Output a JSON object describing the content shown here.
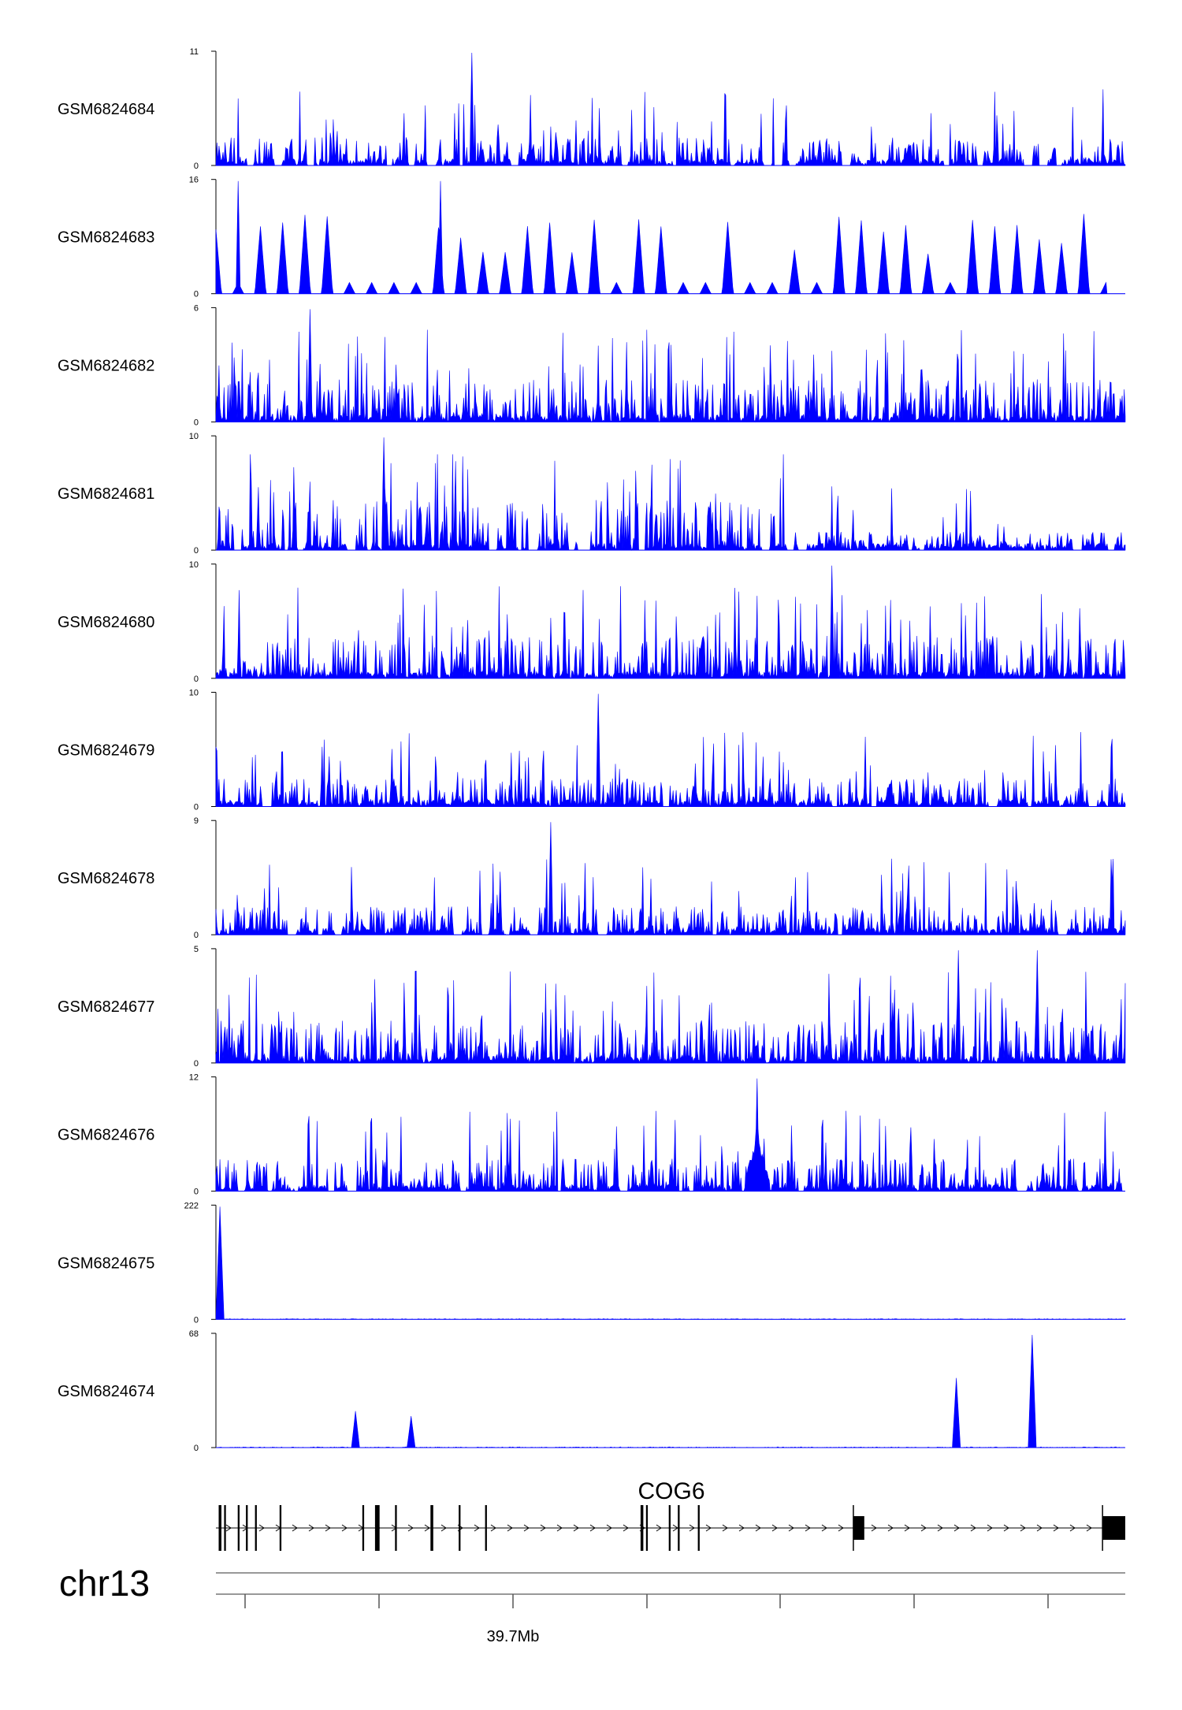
{
  "chart_data": {
    "type": "area",
    "fill_color": "#0000ff",
    "tracks": [
      {
        "name": "GSM6824684",
        "ymax_label": "11",
        "ymin_label": "0",
        "ymax": 11,
        "texture": "spiky_sparse",
        "peaks": [
          {
            "x": 0.281,
            "y": 11
          }
        ]
      },
      {
        "name": "GSM6824683",
        "ymax_label": "16",
        "ymin_label": "0",
        "ymax": 16,
        "texture": "triangular",
        "peaks": [
          {
            "x": 0.025,
            "y": 16
          },
          {
            "x": 0.247,
            "y": 16
          }
        ]
      },
      {
        "name": "GSM6824682",
        "ymax_label": "6",
        "ymin_label": "0",
        "ymax": 6,
        "texture": "dense",
        "peaks": [
          {
            "x": 0.104,
            "y": 6
          }
        ]
      },
      {
        "name": "GSM6824681",
        "ymax_label": "10",
        "ymin_label": "0",
        "ymax": 10,
        "texture": "decaying",
        "peaks": [
          {
            "x": 0.185,
            "y": 10
          }
        ]
      },
      {
        "name": "GSM6824680",
        "ymax_label": "10",
        "ymin_label": "0",
        "ymax": 10,
        "texture": "dense",
        "peaks": [
          {
            "x": 0.677,
            "y": 10
          }
        ]
      },
      {
        "name": "GSM6824679",
        "ymax_label": "10",
        "ymin_label": "0",
        "ymax": 10,
        "texture": "spiky_sparse",
        "peaks": [
          {
            "x": 0.421,
            "y": 10
          }
        ]
      },
      {
        "name": "GSM6824678",
        "ymax_label": "9",
        "ymin_label": "0",
        "ymax": 9,
        "texture": "spiky_sparse",
        "peaks": [
          {
            "x": 0.368,
            "y": 9
          }
        ]
      },
      {
        "name": "GSM6824677",
        "ymax_label": "5",
        "ymin_label": "0",
        "ymax": 5,
        "texture": "dense",
        "peaks": [
          {
            "x": 0.817,
            "y": 5
          },
          {
            "x": 0.903,
            "y": 5
          }
        ]
      },
      {
        "name": "GSM6824676",
        "ymax_label": "12",
        "ymin_label": "0",
        "ymax": 12,
        "texture": "wide",
        "peaks": [
          {
            "x": 0.595,
            "y": 12
          }
        ]
      },
      {
        "name": "GSM6824675",
        "ymax_label": "222",
        "ymin_label": "0",
        "ymax": 222,
        "texture": "flat",
        "peaks": [
          {
            "x": 0.004,
            "y": 222
          }
        ]
      },
      {
        "name": "GSM6824674",
        "ymax_label": "68",
        "ymin_label": "0",
        "ymax": 68,
        "texture": "flat",
        "peaks": [
          {
            "x": 0.154,
            "y": 22
          },
          {
            "x": 0.215,
            "y": 19
          },
          {
            "x": 0.814,
            "y": 42
          },
          {
            "x": 0.898,
            "y": 68
          }
        ]
      }
    ],
    "gene": {
      "name": "COG6",
      "strand": "+",
      "exons": [
        {
          "x": 0.003,
          "w": 0.003
        },
        {
          "x": 0.009,
          "w": 0.002
        },
        {
          "x": 0.024,
          "w": 0.002
        },
        {
          "x": 0.033,
          "w": 0.002
        },
        {
          "x": 0.043,
          "w": 0.002
        },
        {
          "x": 0.07,
          "w": 0.002
        },
        {
          "x": 0.161,
          "w": 0.002
        },
        {
          "x": 0.175,
          "w": 0.005
        },
        {
          "x": 0.197,
          "w": 0.002
        },
        {
          "x": 0.236,
          "w": 0.003
        },
        {
          "x": 0.267,
          "w": 0.002
        },
        {
          "x": 0.296,
          "w": 0.002
        },
        {
          "x": 0.467,
          "w": 0.003
        },
        {
          "x": 0.473,
          "w": 0.002
        },
        {
          "x": 0.498,
          "w": 0.002
        },
        {
          "x": 0.508,
          "w": 0.002
        },
        {
          "x": 0.53,
          "w": 0.002
        },
        {
          "x": 0.701,
          "w": 0.012
        },
        {
          "x": 0.975,
          "w": 0.025
        }
      ]
    },
    "chromosome": "chr13",
    "axis": {
      "tick_label": "39.7Mb",
      "label_tick_index": 2
    }
  }
}
